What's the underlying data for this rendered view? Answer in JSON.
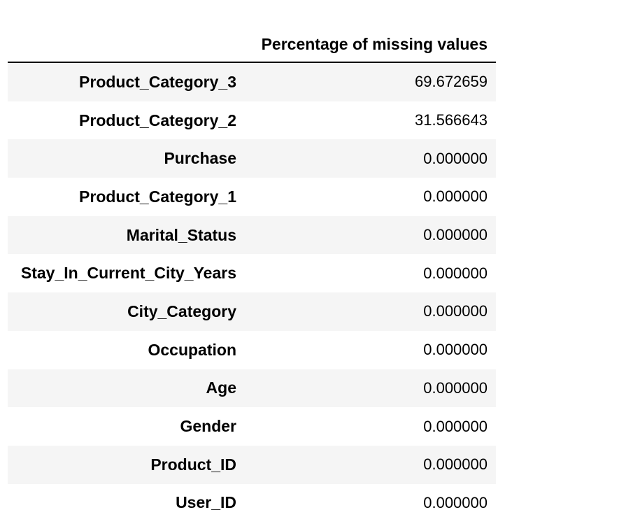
{
  "table": {
    "column_header": "Percentage of missing values",
    "rows": [
      {
        "index": "Product_Category_3",
        "value": "69.672659"
      },
      {
        "index": "Product_Category_2",
        "value": "31.566643"
      },
      {
        "index": "Purchase",
        "value": "0.000000"
      },
      {
        "index": "Product_Category_1",
        "value": "0.000000"
      },
      {
        "index": "Marital_Status",
        "value": "0.000000"
      },
      {
        "index": "Stay_In_Current_City_Years",
        "value": "0.000000"
      },
      {
        "index": "City_Category",
        "value": "0.000000"
      },
      {
        "index": "Occupation",
        "value": "0.000000"
      },
      {
        "index": "Age",
        "value": "0.000000"
      },
      {
        "index": "Gender",
        "value": "0.000000"
      },
      {
        "index": "Product_ID",
        "value": "0.000000"
      },
      {
        "index": "User_ID",
        "value": "0.000000"
      }
    ]
  }
}
